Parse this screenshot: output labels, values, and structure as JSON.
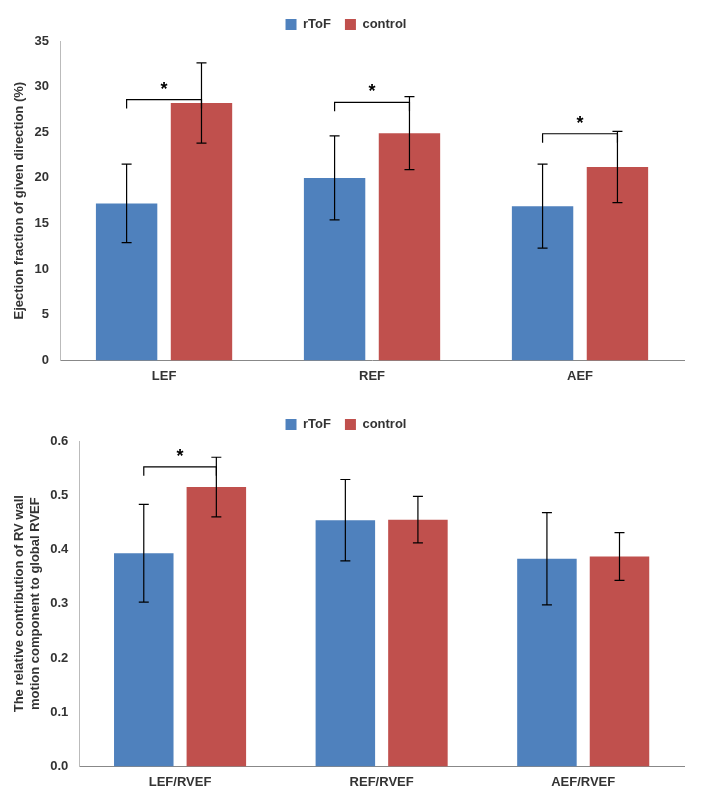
{
  "chart_data": [
    {
      "type": "bar",
      "categories": [
        "LEF",
        "REF",
        "AEF"
      ],
      "series": [
        {
          "name": "rToF",
          "color": "#4f81bd",
          "values": [
            17.2,
            20.0,
            16.9
          ],
          "errors": [
            4.3,
            4.6,
            4.6
          ]
        },
        {
          "name": "control",
          "color": "#c0504d",
          "values": [
            28.2,
            24.9,
            21.2
          ],
          "errors": [
            4.4,
            4.0,
            3.9
          ]
        }
      ],
      "ylabel": "Ejection fraction of given direction (%)",
      "ylim": [
        0,
        35
      ],
      "yticks": [
        0,
        5,
        10,
        15,
        20,
        25,
        30,
        35
      ],
      "grid": false,
      "legend": "top",
      "annotations": [
        {
          "category": "LEF",
          "text": "*"
        },
        {
          "category": "REF",
          "text": "*"
        },
        {
          "category": "AEF",
          "text": "*"
        }
      ]
    },
    {
      "type": "bar",
      "categories": [
        "LEF/RVEF",
        "REF/RVEF",
        "AEF/RVEF"
      ],
      "series": [
        {
          "name": "rToF",
          "color": "#4f81bd",
          "values": [
            0.393,
            0.454,
            0.383
          ],
          "errors": [
            0.09,
            0.075,
            0.085
          ]
        },
        {
          "name": "control",
          "color": "#c0504d",
          "values": [
            0.515,
            0.455,
            0.387
          ],
          "errors": [
            0.055,
            0.043,
            0.044
          ]
        }
      ],
      "ylabel": [
        "The relative contribution of RV wall",
        "motion component to global RVEF"
      ],
      "ylim": [
        0,
        0.6
      ],
      "yticks": [
        {
          "value": 0,
          "label": "0.0"
        },
        0.1,
        0.2,
        0.3,
        0.4,
        0.5,
        0.6
      ],
      "grid": false,
      "legend": "top",
      "annotations": [
        {
          "category": "LEF/RVEF",
          "text": "*"
        }
      ]
    }
  ]
}
